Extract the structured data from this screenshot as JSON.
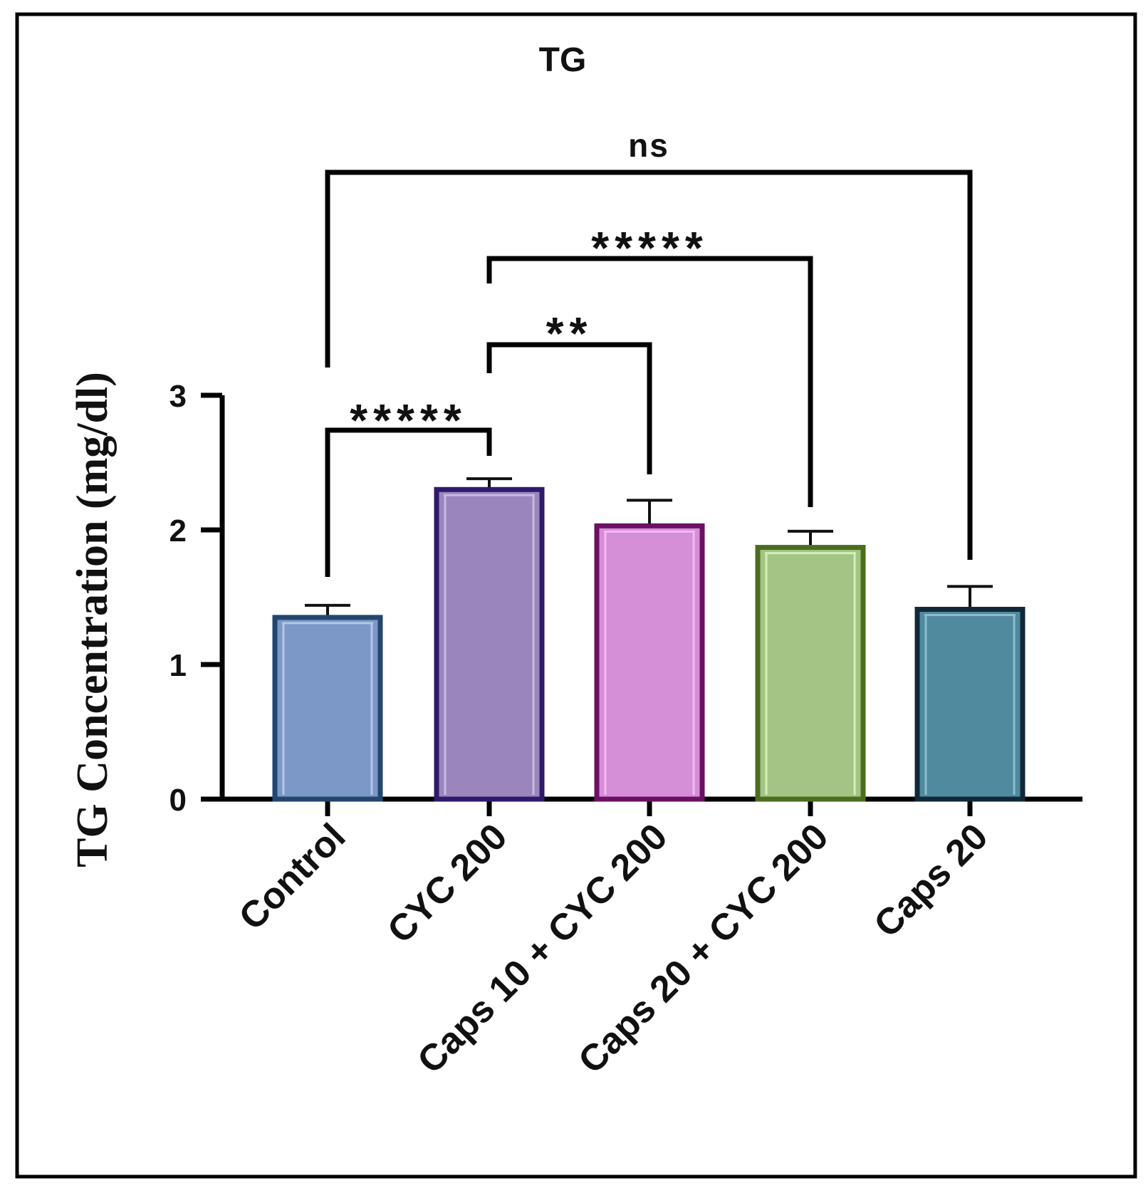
{
  "chart_data": {
    "type": "bar",
    "title": "TG",
    "xlabel": "",
    "ylabel": "TG Concentration (mg/dl)",
    "ylim": [
      0,
      3
    ],
    "yticks": [
      0,
      1,
      2,
      3
    ],
    "categories": [
      "Control",
      "CYC 200",
      "Caps 10 + CYC 200",
      "Caps 20 + CYC 200",
      "Caps 20"
    ],
    "values": [
      1.35,
      2.3,
      2.03,
      1.87,
      1.41
    ],
    "errors": [
      0.09,
      0.08,
      0.19,
      0.12,
      0.17
    ],
    "bar_fill_colors": [
      "#7b98c6",
      "#9a86bd",
      "#d58fd6",
      "#a4c486",
      "#4f8a9e"
    ],
    "bar_edge_colors": [
      "#23466f",
      "#2e1a6b",
      "#6b1064",
      "#4a6e1e",
      "#122838"
    ],
    "bar_highlight_colors": [
      "#b4c7e4",
      "#c8b9e3",
      "#f3b9f4",
      "#d2efb8",
      "#8fbccc"
    ],
    "comparisons": [
      {
        "from": 0,
        "to": 1,
        "label": "*****"
      },
      {
        "from": 1,
        "to": 2,
        "label": "**"
      },
      {
        "from": 1,
        "to": 3,
        "label": "*****"
      },
      {
        "from": 0,
        "to": 4,
        "label": "ns"
      }
    ]
  }
}
